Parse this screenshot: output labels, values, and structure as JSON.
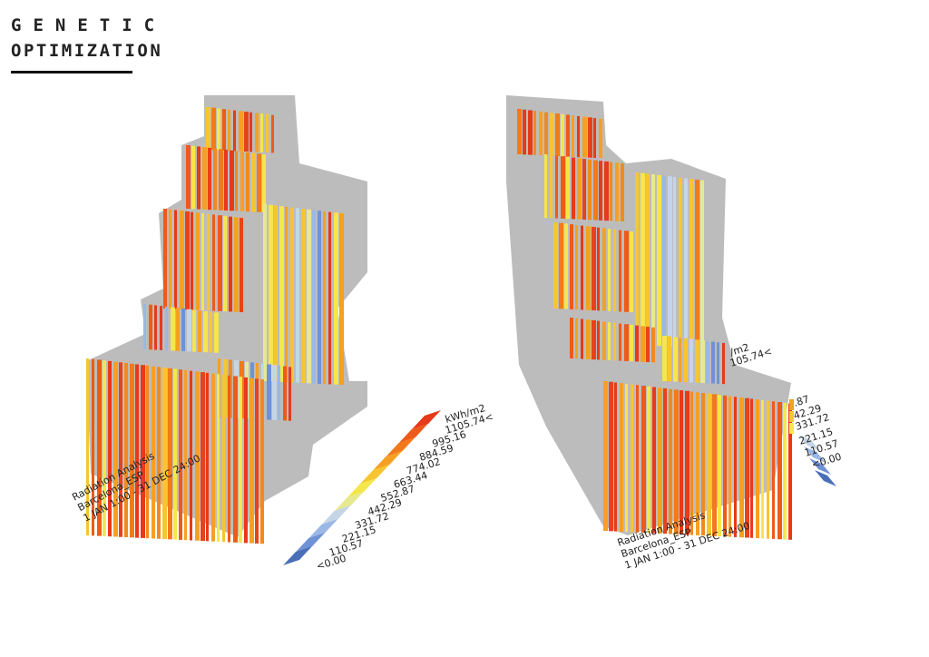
{
  "header": {
    "title_line1": "GENETIC",
    "title_line2": "OPTIMIZATION"
  },
  "left": {
    "caption": [
      "Radiation Analysis",
      "Barcelona_ESP",
      "1 JAN 1:00 - 31 DEC 24:00"
    ],
    "legend": {
      "unit": "kWh/m2",
      "labels": [
        "1105.74<",
        "995.16",
        "884.59",
        "774.02",
        "663.44",
        "552.87",
        "442.29",
        "331.72",
        "221.15",
        "110.57",
        "<0.00"
      ]
    }
  },
  "right": {
    "caption": [
      "Radiation Analysis",
      "Barcelona_ESP",
      "1 JAN 1:00 - 31 DEC 24:00"
    ],
    "legend": {
      "labels": [
        "/m2",
        "105.74<",
        ".87",
        "42.29",
        "331.72",
        "221.15",
        "110.57",
        "<0.00"
      ]
    }
  }
}
